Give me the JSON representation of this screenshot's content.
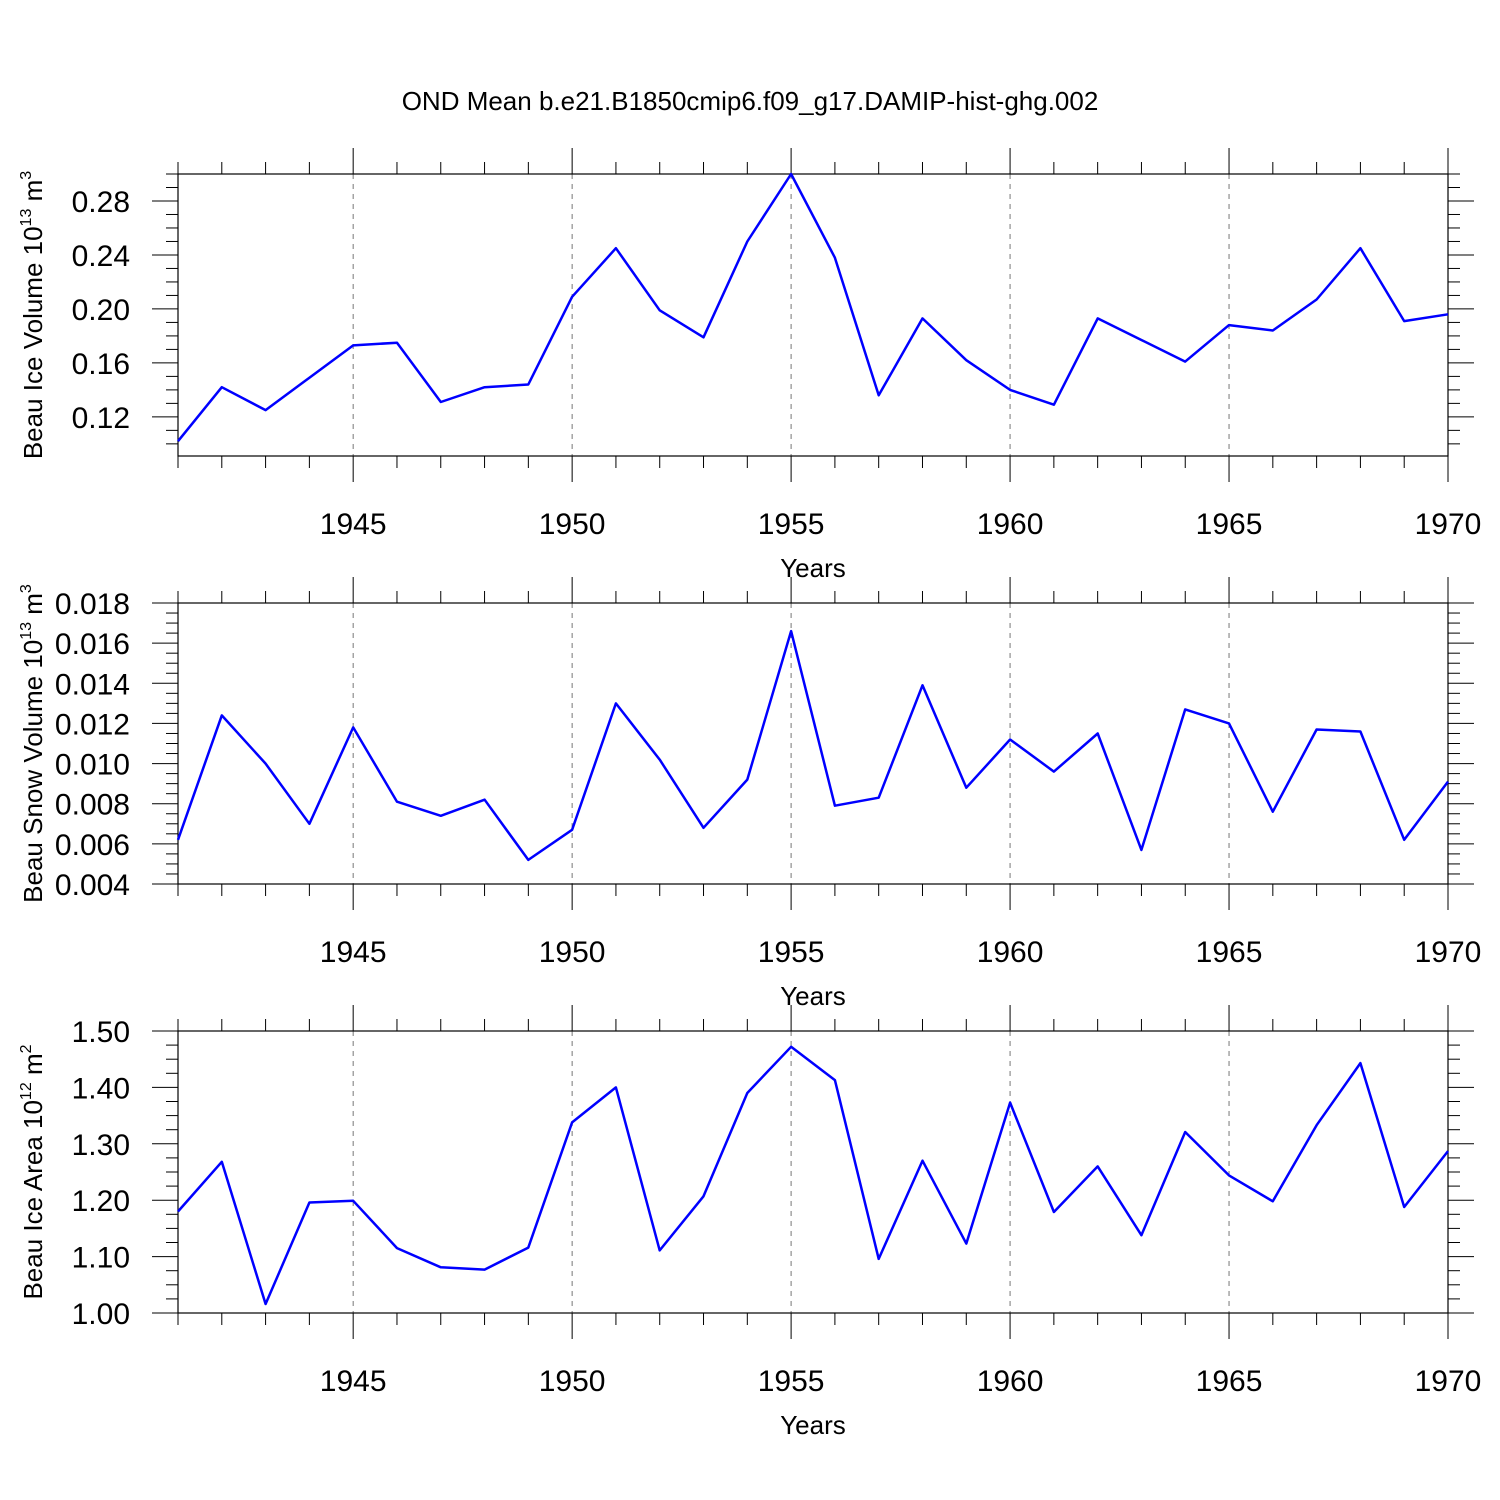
{
  "figure_title": "OND Mean b.e21.B1850cmip6.f09_g17.DAMIP-hist-ghg.002",
  "colors": {
    "line": "#0000ff",
    "axes": "#000000",
    "grid": "#777777"
  },
  "chart_data": [
    {
      "type": "line",
      "name": "ice-volume",
      "title": "",
      "xlabel": "Years",
      "ylabel": {
        "text": "Beau Ice Volume 10",
        "sup": "13",
        "unit": " m",
        "unit_sup": "3"
      },
      "xlim": [
        1941,
        1970
      ],
      "ylim": [
        0.091,
        0.3
      ],
      "xticks": [
        1945,
        1950,
        1955,
        1960,
        1965,
        1970
      ],
      "xtick_labels": [
        "1945",
        "1950",
        "1955",
        "1960",
        "1965",
        "1970"
      ],
      "yticks": [
        0.12,
        0.16,
        0.2,
        0.24,
        0.28
      ],
      "ytick_labels": [
        "0.12",
        "0.16",
        "0.20",
        "0.24",
        "0.28"
      ],
      "grid": "vertical dashed at major x ticks",
      "series": [
        {
          "name": "Beau Ice Volume",
          "x": [
            1941,
            1942,
            1943,
            1944,
            1945,
            1946,
            1947,
            1948,
            1949,
            1950,
            1951,
            1952,
            1953,
            1954,
            1955,
            1956,
            1957,
            1958,
            1959,
            1960,
            1961,
            1962,
            1963,
            1964,
            1965,
            1966,
            1967,
            1968,
            1969,
            1970
          ],
          "values": [
            0.102,
            0.142,
            0.125,
            0.149,
            0.173,
            0.175,
            0.131,
            0.142,
            0.144,
            0.209,
            0.245,
            0.199,
            0.179,
            0.25,
            0.3,
            0.238,
            0.136,
            0.193,
            0.162,
            0.14,
            0.129,
            0.193,
            0.177,
            0.161,
            0.188,
            0.184,
            0.207,
            0.245,
            0.191,
            0.196
          ]
        }
      ]
    },
    {
      "type": "line",
      "name": "snow-volume",
      "title": "",
      "xlabel": "Years",
      "ylabel": {
        "text": "Beau Snow Volume 10",
        "sup": "13",
        "unit": " m",
        "unit_sup": "3"
      },
      "xlim": [
        1941,
        1970
      ],
      "ylim": [
        0.004,
        0.018
      ],
      "xticks": [
        1945,
        1950,
        1955,
        1960,
        1965,
        1970
      ],
      "xtick_labels": [
        "1945",
        "1950",
        "1955",
        "1960",
        "1965",
        "1970"
      ],
      "yticks": [
        0.004,
        0.006,
        0.008,
        0.01,
        0.012,
        0.014,
        0.016,
        0.018
      ],
      "ytick_labels": [
        "0.004",
        "0.006",
        "0.008",
        "0.010",
        "0.012",
        "0.014",
        "0.016",
        "0.018"
      ],
      "grid": "vertical dashed at major x ticks",
      "series": [
        {
          "name": "Beau Snow Volume",
          "x": [
            1941,
            1942,
            1943,
            1944,
            1945,
            1946,
            1947,
            1948,
            1949,
            1950,
            1951,
            1952,
            1953,
            1954,
            1955,
            1956,
            1957,
            1958,
            1959,
            1960,
            1961,
            1962,
            1963,
            1964,
            1965,
            1966,
            1967,
            1968,
            1969,
            1970
          ],
          "values": [
            0.0062,
            0.0124,
            0.01,
            0.007,
            0.0118,
            0.0081,
            0.0074,
            0.0082,
            0.0052,
            0.0067,
            0.013,
            0.0102,
            0.0068,
            0.0092,
            0.0166,
            0.0079,
            0.0083,
            0.0139,
            0.0088,
            0.0112,
            0.0096,
            0.0115,
            0.0057,
            0.0127,
            0.012,
            0.0076,
            0.0117,
            0.0116,
            0.0062,
            0.0091
          ]
        }
      ]
    },
    {
      "type": "line",
      "name": "ice-area",
      "title": "",
      "xlabel": "Years",
      "ylabel": {
        "text": "Beau Ice Area 10",
        "sup": "12",
        "unit": " m",
        "unit_sup": "2"
      },
      "xlim": [
        1941,
        1970
      ],
      "ylim": [
        1.0,
        1.5
      ],
      "xticks": [
        1945,
        1950,
        1955,
        1960,
        1965,
        1970
      ],
      "xtick_labels": [
        "1945",
        "1950",
        "1955",
        "1960",
        "1965",
        "1970"
      ],
      "yticks": [
        1.0,
        1.1,
        1.2,
        1.3,
        1.4,
        1.5
      ],
      "ytick_labels": [
        "1.00",
        "1.10",
        "1.20",
        "1.30",
        "1.40",
        "1.50"
      ],
      "grid": "vertical dashed at major x ticks",
      "series": [
        {
          "name": "Beau Ice Area",
          "x": [
            1941,
            1942,
            1943,
            1944,
            1945,
            1946,
            1947,
            1948,
            1949,
            1950,
            1951,
            1952,
            1953,
            1954,
            1955,
            1956,
            1957,
            1958,
            1959,
            1960,
            1961,
            1962,
            1963,
            1964,
            1965,
            1966,
            1967,
            1968,
            1969,
            1970
          ],
          "values": [
            1.18,
            1.268,
            1.016,
            1.196,
            1.199,
            1.115,
            1.081,
            1.077,
            1.116,
            1.338,
            1.4,
            1.111,
            1.207,
            1.39,
            1.472,
            1.413,
            1.096,
            1.27,
            1.123,
            1.373,
            1.179,
            1.26,
            1.138,
            1.321,
            1.244,
            1.198,
            1.333,
            1.443,
            1.188,
            1.287
          ]
        }
      ]
    }
  ]
}
